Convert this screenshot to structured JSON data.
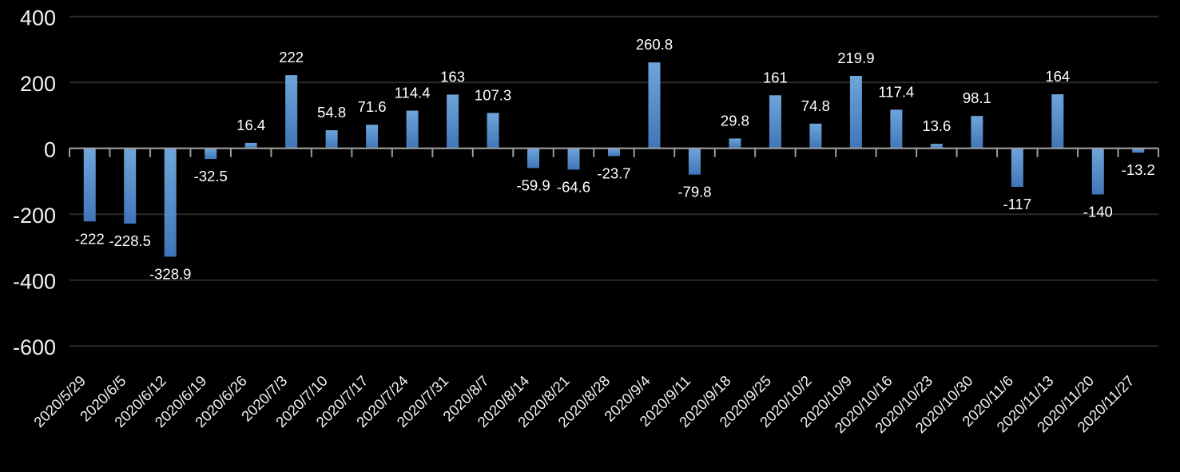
{
  "chart_data": {
    "type": "bar",
    "title": "",
    "xlabel": "",
    "ylabel": "",
    "categories": [
      "2020/5/29",
      "2020/6/5",
      "2020/6/12",
      "2020/6/19",
      "2020/6/26",
      "2020/7/3",
      "2020/7/10",
      "2020/7/17",
      "2020/7/24",
      "2020/7/31",
      "2020/8/7",
      "2020/8/14",
      "2020/8/21",
      "2020/8/28",
      "2020/9/4",
      "2020/9/11",
      "2020/9/18",
      "2020/9/25",
      "2020/10/2",
      "2020/10/9",
      "2020/10/16",
      "2020/10/23",
      "2020/10/30",
      "2020/11/6",
      "2020/11/13",
      "2020/11/20",
      "2020/11/27"
    ],
    "values": [
      -222,
      -228.5,
      -328.9,
      -32.5,
      16.4,
      222,
      54.8,
      71.6,
      114.4,
      163,
      107.3,
      -59.9,
      -64.6,
      -23.7,
      260.8,
      -79.8,
      29.8,
      161,
      74.8,
      219.9,
      117.4,
      13.6,
      98.1,
      -117,
      164,
      -140,
      -13.2
    ],
    "data_labels": [
      "-222",
      "-228.5",
      "-328.9",
      "-32.5",
      "16.4",
      "222",
      "54.8",
      "71.6",
      "114.4",
      "163",
      "107.3",
      "-59.9",
      "-64.6",
      "-23.7",
      "260.8",
      "-79.8",
      "29.8",
      "161",
      "74.8",
      "219.9",
      "117.4",
      "13.6",
      "98.1",
      "-117",
      "164",
      "-140",
      "-13.2"
    ],
    "ylim": [
      -600,
      400
    ],
    "yticks": [
      400,
      200,
      0,
      -200,
      -400,
      -600
    ],
    "grid": true,
    "legend": "none",
    "x_tick_rotation_deg": 45
  },
  "colors": {
    "background": "#000000",
    "bar_gradient_top": "#6FA5DA",
    "bar_gradient_bottom": "#4076B8",
    "grid_line": "#2B2B2B",
    "axis_line": "#9D9D9D",
    "axis_label_text": "#F2F2F2",
    "data_label_text": "#FFFFFF"
  }
}
